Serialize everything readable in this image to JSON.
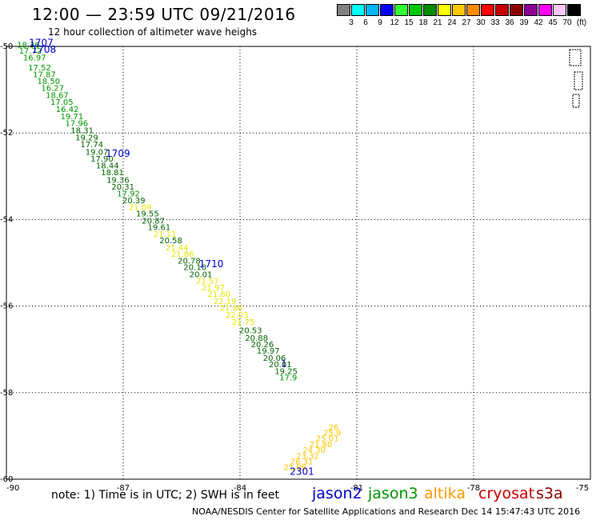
{
  "header": {
    "title": "12:00 — 23:59 UTC 09/21/2016",
    "subtitle": "12 hour collection of altimeter wave heighs"
  },
  "colorbar": {
    "colors": [
      "#7f7f7f",
      "#00ffff",
      "#00b4ff",
      "#0000ff",
      "#32ff32",
      "#00c800",
      "#008c00",
      "#ffff00",
      "#ffc800",
      "#ff8c00",
      "#ff0000",
      "#c80000",
      "#8c0000",
      "#8c0096",
      "#ff00ff",
      "#ffc8ff",
      "#000000"
    ],
    "labels": [
      "3",
      "6",
      "9",
      "12",
      "15",
      "18",
      "21",
      "24",
      "27",
      "30",
      "33",
      "36",
      "39",
      "42",
      "45",
      "70",
      "(ft)"
    ]
  },
  "footer": {
    "note": "note: 1) Time is in UTC; 2) SWH is in feet",
    "credit": "NOAA/NESDIS Center for Satellite Applications and Research    Dec 14 15:47:43 UTC 2016",
    "satellites": [
      {
        "name": "jason2",
        "color": "#0000cc"
      },
      {
        "name": "jason3",
        "color": "#009600"
      },
      {
        "name": "altika",
        "color": "#ff9900"
      },
      {
        "name": "cryosat",
        "color": "#cc0000"
      },
      {
        "name": "s3a",
        "color": "#8b0000"
      }
    ]
  },
  "chart_data": {
    "type": "scatter",
    "xlim": [
      -90,
      -75
    ],
    "ylim": [
      -60,
      -50
    ],
    "xticks": [
      "-90",
      "-87",
      "-84",
      "-81",
      "-78",
      "-75"
    ],
    "yticks": [
      "-50",
      "-52",
      "-54",
      "-56",
      "-58",
      "-60"
    ],
    "grid": "dotted",
    "track_points": [
      {
        "x": -89.73,
        "y": -50.03,
        "v": "18.36",
        "color": "#009600"
      },
      {
        "x": -89.68,
        "y": -50.17,
        "v": "17.72",
        "color": "#009600"
      },
      {
        "x": -89.57,
        "y": -50.32,
        "v": "16.97",
        "color": "#009600"
      },
      {
        "x": -89.44,
        "y": -50.55,
        "v": "17.52",
        "color": "#009600"
      },
      {
        "x": -89.32,
        "y": -50.71,
        "v": "17.87",
        "color": "#009600"
      },
      {
        "x": -89.21,
        "y": -50.87,
        "v": "18.50",
        "color": "#009600"
      },
      {
        "x": -89.11,
        "y": -51.03,
        "v": "16.27",
        "color": "#009600"
      },
      {
        "x": -88.99,
        "y": -51.19,
        "v": "18.67",
        "color": "#009600"
      },
      {
        "x": -88.87,
        "y": -51.35,
        "v": "17.05",
        "color": "#009600"
      },
      {
        "x": -88.73,
        "y": -51.52,
        "v": "16.42",
        "color": "#009600"
      },
      {
        "x": -88.61,
        "y": -51.68,
        "v": "19.71",
        "color": "#009600"
      },
      {
        "x": -88.49,
        "y": -51.84,
        "v": "17.96",
        "color": "#009600"
      },
      {
        "x": -88.35,
        "y": -52.01,
        "v": "18.31",
        "color": "#006400"
      },
      {
        "x": -88.23,
        "y": -52.17,
        "v": "19.29",
        "color": "#006400"
      },
      {
        "x": -88.1,
        "y": -52.33,
        "v": "17.74",
        "color": "#006400"
      },
      {
        "x": -87.97,
        "y": -52.5,
        "v": "19.07",
        "color": "#006400"
      },
      {
        "x": -87.84,
        "y": -52.66,
        "v": "17.90",
        "color": "#006400"
      },
      {
        "x": -87.7,
        "y": -52.82,
        "v": "18.44",
        "color": "#006400"
      },
      {
        "x": -87.57,
        "y": -52.98,
        "v": "18.81",
        "color": "#006400"
      },
      {
        "x": -87.43,
        "y": -53.15,
        "v": "19.36",
        "color": "#006400"
      },
      {
        "x": -87.3,
        "y": -53.31,
        "v": "20.31",
        "color": "#006400"
      },
      {
        "x": -87.16,
        "y": -53.47,
        "v": "17.92",
        "color": "#009600"
      },
      {
        "x": -87.02,
        "y": -53.62,
        "v": "20.39",
        "color": "#006400"
      },
      {
        "x": -86.86,
        "y": -53.78,
        "v": "21.09",
        "color": "#e6e600"
      },
      {
        "x": -86.67,
        "y": -53.93,
        "v": "19.55",
        "color": "#006400"
      },
      {
        "x": -86.52,
        "y": -54.09,
        "v": "20.87",
        "color": "#006400"
      },
      {
        "x": -86.37,
        "y": -54.24,
        "v": "19.61",
        "color": "#006400"
      },
      {
        "x": -86.22,
        "y": -54.4,
        "v": "21.11",
        "color": "#e6e600"
      },
      {
        "x": -86.07,
        "y": -54.55,
        "v": "20.58",
        "color": "#006400"
      },
      {
        "x": -85.91,
        "y": -54.71,
        "v": "21.44",
        "color": "#e6e600"
      },
      {
        "x": -85.77,
        "y": -54.86,
        "v": "21.86",
        "color": "#e6e600"
      },
      {
        "x": -85.6,
        "y": -55.02,
        "v": "20.78",
        "color": "#006400"
      },
      {
        "x": -85.45,
        "y": -55.17,
        "v": "20.10",
        "color": "#006400"
      },
      {
        "x": -85.3,
        "y": -55.33,
        "v": "20.01",
        "color": "#006400"
      },
      {
        "x": -85.13,
        "y": -55.48,
        "v": "21.57",
        "color": "#e6e600"
      },
      {
        "x": -84.98,
        "y": -55.64,
        "v": "21.97",
        "color": "#e6e600"
      },
      {
        "x": -84.83,
        "y": -55.79,
        "v": "21.80",
        "color": "#e6e600"
      },
      {
        "x": -84.68,
        "y": -55.95,
        "v": "22.19",
        "color": "#e6e600"
      },
      {
        "x": -84.52,
        "y": -56.11,
        "v": "21.80",
        "color": "#e6e600"
      },
      {
        "x": -84.37,
        "y": -56.27,
        "v": "22.03",
        "color": "#e6e600"
      },
      {
        "x": -84.21,
        "y": -56.43,
        "v": "21.75",
        "color": "#e6e600"
      },
      {
        "x": -84.02,
        "y": -56.63,
        "v": "20.53",
        "color": "#006400"
      },
      {
        "x": -83.87,
        "y": -56.8,
        "v": "20.88",
        "color": "#006400"
      },
      {
        "x": -83.72,
        "y": -56.95,
        "v": "20.26",
        "color": "#006400"
      },
      {
        "x": -83.57,
        "y": -57.1,
        "v": "19.97",
        "color": "#006400"
      },
      {
        "x": -83.41,
        "y": -57.26,
        "v": "20.06",
        "color": "#006400"
      },
      {
        "x": -83.26,
        "y": -57.41,
        "v": "20.01",
        "color": "#006400"
      },
      {
        "x": -83.11,
        "y": -57.57,
        "v": "19.25",
        "color": "#006400"
      },
      {
        "x": -82.99,
        "y": -57.72,
        "v": "17.9",
        "color": "#009600"
      },
      {
        "x": -82.88,
        "y": -59.79,
        "v": "21.98",
        "color": "#ffc800"
      },
      {
        "x": -82.71,
        "y": -59.66,
        "v": "26.31",
        "color": "#ffc800"
      },
      {
        "x": -82.56,
        "y": -59.53,
        "v": "23.32",
        "color": "#ffc800"
      },
      {
        "x": -82.39,
        "y": -59.39,
        "v": "24.30",
        "color": "#ffc800"
      },
      {
        "x": -82.22,
        "y": -59.26,
        "v": "21.80",
        "color": "#ffc800"
      },
      {
        "x": -82.05,
        "y": -59.12,
        "v": "25.01",
        "color": "#ffc800"
      },
      {
        "x": -81.86,
        "y": -58.99,
        "v": "25.9",
        "color": "#ffc800"
      },
      {
        "x": -81.73,
        "y": -58.86,
        "v": "26",
        "color": "#ffc800"
      }
    ],
    "time_labels": [
      {
        "x": -89.42,
        "y": -49.99,
        "text": "1707",
        "color": "#0000cc"
      },
      {
        "x": -89.35,
        "y": -50.15,
        "text": "1708",
        "color": "#0000cc"
      },
      {
        "x": -87.45,
        "y": -52.55,
        "text": "1709",
        "color": "#0000cc"
      },
      {
        "x": -85.05,
        "y": -55.1,
        "text": "1710",
        "color": "#0000cc"
      },
      {
        "x": -82.72,
        "y": -59.9,
        "text": "2301",
        "color": "#0000cc"
      },
      {
        "x": -82.95,
        "y": -57.4,
        "text": "1",
        "color": "#0000cc"
      }
    ]
  }
}
